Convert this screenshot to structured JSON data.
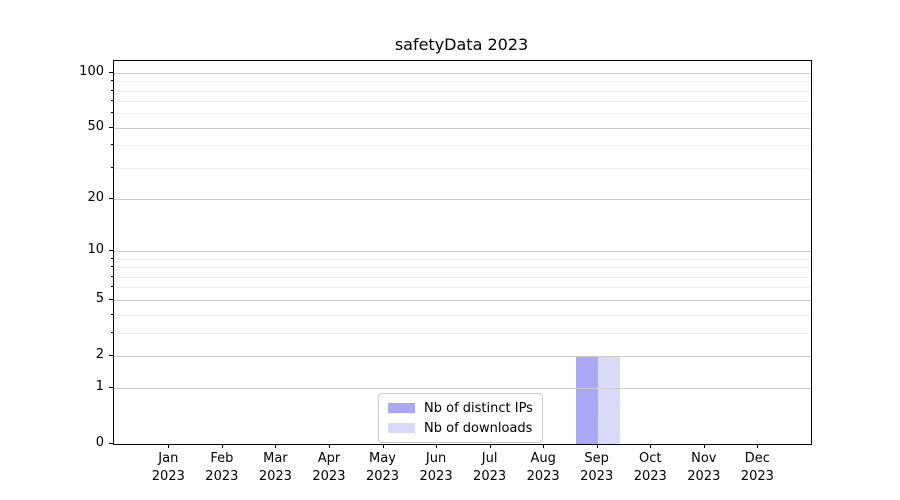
{
  "chart_data": {
    "type": "bar",
    "title": "safetyData 2023",
    "x_tick_labels": [
      {
        "month": "Jan",
        "year": "2023"
      },
      {
        "month": "Feb",
        "year": "2023"
      },
      {
        "month": "Mar",
        "year": "2023"
      },
      {
        "month": "Apr",
        "year": "2023"
      },
      {
        "month": "May",
        "year": "2023"
      },
      {
        "month": "Jun",
        "year": "2023"
      },
      {
        "month": "Jul",
        "year": "2023"
      },
      {
        "month": "Aug",
        "year": "2023"
      },
      {
        "month": "Sep",
        "year": "2023"
      },
      {
        "month": "Oct",
        "year": "2023"
      },
      {
        "month": "Nov",
        "year": "2023"
      },
      {
        "month": "Dec",
        "year": "2023"
      }
    ],
    "series": [
      {
        "name": "Nb of distinct IPs",
        "color": "#a8a8f5",
        "values": [
          0,
          0,
          0,
          0,
          0,
          0,
          0,
          0,
          2,
          0,
          0,
          0
        ]
      },
      {
        "name": "Nb of downloads",
        "color": "#d9d9f8",
        "values": [
          0,
          0,
          0,
          0,
          0,
          0,
          0,
          0,
          2,
          0,
          0,
          0
        ]
      }
    ],
    "yscale": "log1p",
    "ylim": [
      0,
      116
    ],
    "yticks": [
      0,
      1,
      2,
      5,
      10,
      20,
      50,
      100
    ],
    "yticks_minor": [
      3,
      4,
      6,
      7,
      8,
      9,
      30,
      40,
      60,
      70,
      80,
      90
    ],
    "grid": {
      "orientation": "horizontal",
      "major_color": "#cccccc",
      "minor_color": "#ededed"
    },
    "legend": {
      "position": "lower-center-inside",
      "entries": [
        "Nb of distinct IPs",
        "Nb of downloads"
      ]
    },
    "spine_color": "#000000"
  }
}
